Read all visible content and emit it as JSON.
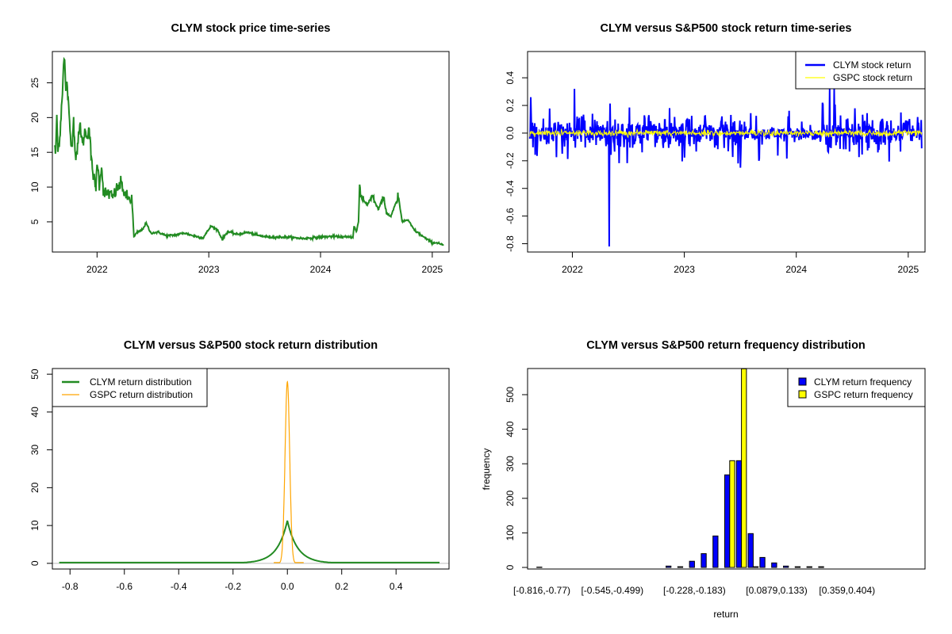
{
  "chart_data": [
    {
      "type": "line",
      "title": "CLYM stock price time-series",
      "xlabel": "",
      "ylabel": "",
      "x_ticks": [
        "2022",
        "2023",
        "2024",
        "2025"
      ],
      "x_tick_values": [
        2022,
        2023,
        2024,
        2025
      ],
      "xlim": [
        2021.6,
        2025.15
      ],
      "y_ticks": [
        "5",
        "10",
        "15",
        "20",
        "25"
      ],
      "y_tick_values": [
        5,
        10,
        15,
        20,
        25
      ],
      "ylim": [
        0.66,
        29.5
      ],
      "color": "#228B22",
      "series": [
        {
          "name": "CLYM price",
          "anchors": [
            [
              2021.62,
              16.0
            ],
            [
              2021.63,
              14.5
            ],
            [
              2021.64,
              20.6
            ],
            [
              2021.65,
              15.0
            ],
            [
              2021.67,
              18.0
            ],
            [
              2021.69,
              24.0
            ],
            [
              2021.7,
              27.5
            ],
            [
              2021.71,
              28.4
            ],
            [
              2021.72,
              23.5
            ],
            [
              2021.73,
              25.5
            ],
            [
              2021.75,
              20.0
            ],
            [
              2021.77,
              15.5
            ],
            [
              2021.79,
              19.5
            ],
            [
              2021.81,
              14.0
            ],
            [
              2021.83,
              16.5
            ],
            [
              2021.85,
              19.0
            ],
            [
              2021.87,
              16.0
            ],
            [
              2021.89,
              18.0
            ],
            [
              2021.91,
              17.5
            ],
            [
              2021.93,
              18.5
            ],
            [
              2021.95,
              13.5
            ],
            [
              2021.97,
              11.5
            ],
            [
              2021.99,
              9.5
            ],
            [
              2022.0,
              14.0
            ],
            [
              2022.02,
              10.5
            ],
            [
              2022.04,
              13.0
            ],
            [
              2022.06,
              9.0
            ],
            [
              2022.1,
              9.2
            ],
            [
              2022.14,
              8.5
            ],
            [
              2022.18,
              9.8
            ],
            [
              2022.22,
              10.5
            ],
            [
              2022.25,
              8.8
            ],
            [
              2022.28,
              8.3
            ],
            [
              2022.31,
              8.3
            ],
            [
              2022.32,
              6.0
            ],
            [
              2022.33,
              2.8
            ],
            [
              2022.36,
              3.5
            ],
            [
              2022.4,
              3.8
            ],
            [
              2022.44,
              4.8
            ],
            [
              2022.48,
              3.4
            ],
            [
              2022.55,
              3.5
            ],
            [
              2022.62,
              3.0
            ],
            [
              2022.7,
              3.1
            ],
            [
              2022.78,
              3.4
            ],
            [
              2022.86,
              3.0
            ],
            [
              2022.95,
              2.7
            ],
            [
              2023.02,
              4.4
            ],
            [
              2023.08,
              3.8
            ],
            [
              2023.12,
              2.5
            ],
            [
              2023.17,
              3.6
            ],
            [
              2023.25,
              3.2
            ],
            [
              2023.35,
              3.5
            ],
            [
              2023.45,
              3.0
            ],
            [
              2023.55,
              2.8
            ],
            [
              2023.7,
              2.8
            ],
            [
              2023.85,
              2.6
            ],
            [
              2024.0,
              2.8
            ],
            [
              2024.1,
              2.9
            ],
            [
              2024.25,
              2.8
            ],
            [
              2024.29,
              2.8
            ],
            [
              2024.3,
              4.5
            ],
            [
              2024.32,
              3.5
            ],
            [
              2024.34,
              5.0
            ],
            [
              2024.35,
              10.0
            ],
            [
              2024.37,
              8.3
            ],
            [
              2024.42,
              7.5
            ],
            [
              2024.46,
              8.7
            ],
            [
              2024.52,
              6.8
            ],
            [
              2024.56,
              8.8
            ],
            [
              2024.59,
              6.2
            ],
            [
              2024.63,
              5.8
            ],
            [
              2024.66,
              7.2
            ],
            [
              2024.7,
              8.4
            ],
            [
              2024.73,
              5.0
            ],
            [
              2024.78,
              5.3
            ],
            [
              2024.84,
              3.8
            ],
            [
              2024.9,
              3.1
            ],
            [
              2024.95,
              2.5
            ],
            [
              2025.0,
              2.0
            ],
            [
              2025.05,
              2.0
            ],
            [
              2025.1,
              1.6
            ]
          ]
        }
      ]
    },
    {
      "type": "line",
      "title": "CLYM versus S&P500 stock return time-series",
      "xlabel": "",
      "ylabel": "",
      "x_ticks": [
        "2022",
        "2023",
        "2024",
        "2025"
      ],
      "x_tick_values": [
        2022,
        2023,
        2024,
        2025
      ],
      "xlim": [
        2021.6,
        2025.15
      ],
      "y_ticks": [
        "-0.8",
        "-0.6",
        "-0.4",
        "-0.2",
        "0.0",
        "0.2",
        "0.4"
      ],
      "y_tick_values": [
        -0.8,
        -0.6,
        -0.4,
        -0.2,
        0.0,
        0.2,
        0.4
      ],
      "ylim": [
        -0.86,
        0.59
      ],
      "legend": {
        "position": "top-right",
        "entries": [
          {
            "label": "CLYM stock return",
            "color": "#0000FF"
          },
          {
            "label": "GSPC stock return",
            "color": "#FFFF00"
          }
        ]
      },
      "series": [
        {
          "name": "CLYM stock return",
          "color": "#0000FF",
          "min": -0.82,
          "max": 0.32,
          "notable_spikes": [
            [
              2022.33,
              -0.82
            ],
            [
              2022.02,
              0.32
            ],
            [
              2024.3,
              0.32
            ],
            [
              2024.34,
              0.32
            ],
            [
              2021.63,
              0.26
            ],
            [
              2023.5,
              -0.25
            ]
          ]
        },
        {
          "name": "GSPC stock return",
          "color": "#FFFF00",
          "min": -0.04,
          "max": 0.04
        }
      ]
    },
    {
      "type": "line",
      "title": "CLYM versus S&P500 stock return distribution",
      "xlabel": "",
      "ylabel": "",
      "x_ticks": [
        "-0.8",
        "-0.6",
        "-0.4",
        "-0.2",
        "0.0",
        "0.2",
        "0.4"
      ],
      "x_tick_values": [
        -0.8,
        -0.6,
        -0.4,
        -0.2,
        0.0,
        0.2,
        0.4
      ],
      "xlim": [
        -0.865,
        0.595
      ],
      "y_ticks": [
        "0",
        "10",
        "20",
        "30",
        "40",
        "50"
      ],
      "y_tick_values": [
        0,
        10,
        20,
        30,
        40,
        50
      ],
      "ylim": [
        -1.5,
        51.5
      ],
      "legend": {
        "position": "top-left",
        "entries": [
          {
            "label": "CLYM return distribution",
            "color": "#228B22"
          },
          {
            "label": "GSPC return distribution",
            "color": "#FFA500"
          }
        ]
      },
      "series": [
        {
          "name": "CLYM return distribution",
          "color": "#228B22",
          "x_range": [
            -0.84,
            0.56
          ],
          "peak": [
            0.0,
            9.8
          ],
          "scale": 0.045
        },
        {
          "name": "GSPC return distribution",
          "color": "#FFA500",
          "x_range": [
            -0.05,
            0.06
          ],
          "peak": [
            0.0,
            48.0
          ],
          "scale": 0.0085
        }
      ]
    },
    {
      "type": "bar",
      "title": "CLYM versus S&P500 return frequency distribution",
      "xlabel": "return",
      "ylabel": "frequency",
      "y_ticks": [
        "0",
        "100",
        "200",
        "300",
        "400",
        "500"
      ],
      "y_tick_values": [
        0,
        100,
        200,
        300,
        400,
        500
      ],
      "ylim": [
        0,
        572
      ],
      "x_tick_labels": [
        {
          "bin": 0,
          "label": "[-0.816,-0.77)"
        },
        {
          "bin": 6,
          "label": "[-0.545,-0.499)"
        },
        {
          "bin": 13,
          "label": "[-0.228,-0.183)"
        },
        {
          "bin": 20,
          "label": "[0.0879,0.133)"
        },
        {
          "bin": 26,
          "label": "[0.359,0.404)"
        }
      ],
      "legend": {
        "position": "top-right",
        "entries": [
          {
            "label": "CLYM return frequency",
            "color": "#0000FF"
          },
          {
            "label": "GSPC return frequency",
            "color": "#FFFF00"
          }
        ]
      },
      "bin_count": 30,
      "series": [
        {
          "name": "CLYM return frequency",
          "color": "#0000FF",
          "values": [
            1,
            0,
            0,
            0,
            0,
            0,
            0,
            0,
            0,
            0,
            0,
            4,
            2,
            18,
            40,
            91,
            268,
            309,
            98,
            29,
            13,
            4,
            2,
            2,
            2,
            0,
            0,
            0,
            0,
            0
          ]
        },
        {
          "name": "GSPC return frequency",
          "color": "#FFFF00",
          "values": [
            0,
            0,
            0,
            0,
            0,
            0,
            0,
            0,
            0,
            0,
            0,
            0,
            0,
            0,
            0,
            0,
            309,
            575,
            2,
            0,
            0,
            0,
            0,
            0,
            0,
            0,
            0,
            0,
            0,
            0
          ]
        }
      ]
    }
  ]
}
